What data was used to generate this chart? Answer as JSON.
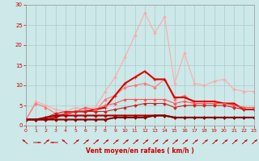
{
  "x": [
    0,
    1,
    2,
    3,
    4,
    5,
    6,
    7,
    8,
    9,
    10,
    11,
    12,
    13,
    14,
    15,
    16,
    17,
    18,
    19,
    20,
    21,
    22,
    23
  ],
  "series": [
    {
      "color": "#ffaaaa",
      "linewidth": 0.8,
      "marker": "D",
      "markersize": 1.8,
      "values": [
        1.5,
        6.0,
        5.0,
        4.0,
        3.5,
        4.5,
        4.0,
        4.5,
        8.5,
        12.0,
        17.0,
        22.5,
        28.0,
        23.0,
        27.0,
        10.5,
        18.0,
        10.5,
        10.0,
        11.0,
        11.5,
        9.0,
        8.5,
        8.5
      ]
    },
    {
      "color": "#ff7777",
      "linewidth": 0.8,
      "marker": "D",
      "markersize": 1.8,
      "values": [
        1.5,
        5.5,
        4.5,
        3.0,
        2.5,
        3.5,
        3.5,
        3.5,
        6.5,
        7.5,
        9.5,
        10.0,
        10.5,
        9.5,
        11.5,
        6.5,
        7.5,
        5.5,
        5.5,
        5.5,
        5.5,
        5.0,
        4.5,
        4.5
      ]
    },
    {
      "color": "#dd0000",
      "linewidth": 1.5,
      "marker": "+",
      "markersize": 3.5,
      "values": [
        1.5,
        1.5,
        1.5,
        2.0,
        3.0,
        3.5,
        3.5,
        4.0,
        4.5,
        7.5,
        10.5,
        12.0,
        13.5,
        11.5,
        11.5,
        7.0,
        7.0,
        6.0,
        6.0,
        6.0,
        5.5,
        5.5,
        4.0,
        4.0
      ]
    },
    {
      "color": "#ff5555",
      "linewidth": 0.8,
      "marker": "D",
      "markersize": 1.8,
      "values": [
        1.5,
        1.5,
        2.0,
        2.5,
        3.0,
        3.5,
        4.5,
        4.0,
        5.0,
        5.5,
        6.5,
        6.5,
        6.5,
        6.5,
        6.5,
        5.5,
        6.0,
        5.5,
        5.5,
        5.5,
        5.5,
        5.0,
        4.5,
        4.5
      ]
    },
    {
      "color": "#cc2222",
      "linewidth": 0.8,
      "marker": "D",
      "markersize": 1.8,
      "values": [
        1.5,
        1.5,
        2.0,
        3.0,
        3.5,
        3.5,
        3.5,
        3.5,
        3.5,
        4.0,
        4.5,
        5.0,
        5.5,
        5.5,
        5.5,
        4.5,
        5.0,
        5.0,
        5.0,
        5.0,
        5.0,
        4.5,
        4.0,
        4.0
      ]
    },
    {
      "color": "#aa0000",
      "linewidth": 1.5,
      "marker": "D",
      "markersize": 1.8,
      "values": [
        1.5,
        1.5,
        2.0,
        2.5,
        2.5,
        2.5,
        2.5,
        2.5,
        2.5,
        2.5,
        2.5,
        2.5,
        2.5,
        2.5,
        2.5,
        2.0,
        2.0,
        2.0,
        2.0,
        2.0,
        2.0,
        2.0,
        2.0,
        2.0
      ]
    },
    {
      "color": "#880000",
      "linewidth": 1.5,
      "marker": "D",
      "markersize": 1.8,
      "values": [
        1.5,
        1.5,
        1.5,
        1.5,
        1.5,
        1.5,
        1.5,
        1.5,
        1.5,
        2.0,
        2.0,
        2.0,
        2.0,
        2.5,
        2.5,
        2.0,
        2.0,
        2.0,
        2.0,
        2.0,
        2.0,
        2.0,
        2.0,
        2.0
      ]
    }
  ],
  "xlabel": "Vent moyen/en rafales ( km/h )",
  "ylim": [
    0,
    30
  ],
  "xlim": [
    0,
    23
  ],
  "yticks": [
    0,
    5,
    10,
    15,
    20,
    25,
    30
  ],
  "xticks": [
    0,
    1,
    2,
    3,
    4,
    5,
    6,
    7,
    8,
    9,
    10,
    11,
    12,
    13,
    14,
    15,
    16,
    17,
    18,
    19,
    20,
    21,
    22,
    23
  ],
  "bg_color": "#cce8e8",
  "grid_color": "#aacccc",
  "tick_color": "#cc0000",
  "label_color": "#cc0000",
  "arrow_color": "#cc0000",
  "arrow_angles": [
    225,
    90,
    135,
    270,
    225,
    135,
    135,
    135,
    135,
    135,
    135,
    135,
    135,
    135,
    135,
    135,
    135,
    135,
    135,
    135,
    135,
    135,
    135,
    135
  ]
}
